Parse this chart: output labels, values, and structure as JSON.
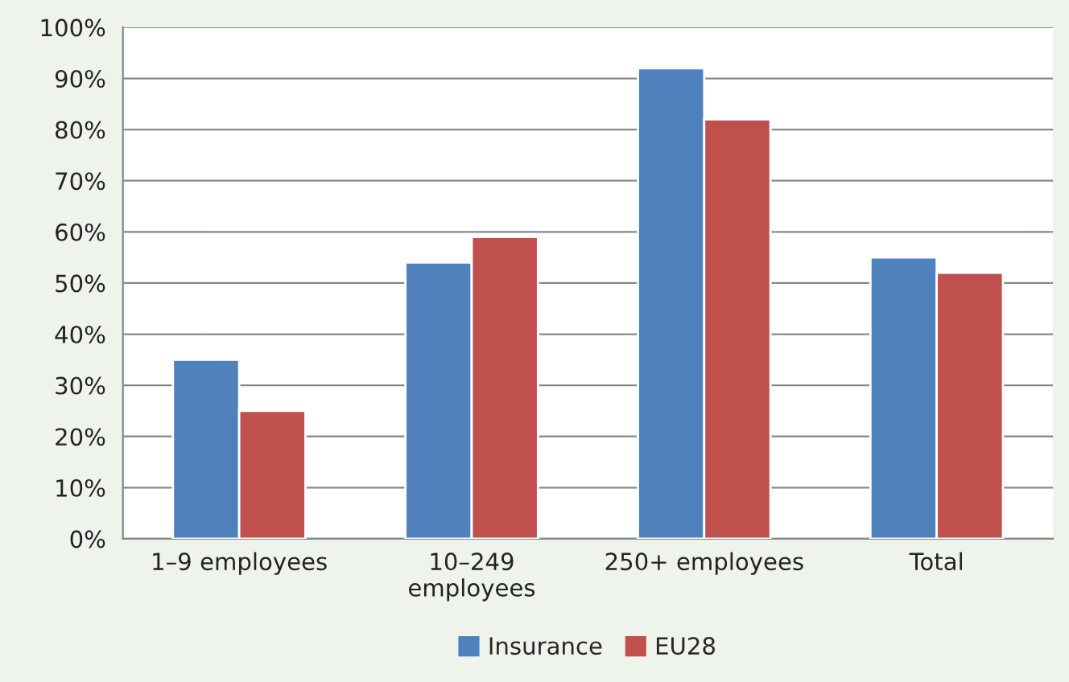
{
  "chart_data": {
    "type": "bar",
    "categories": [
      "1–9 employees",
      "10–249\nemployees",
      "250+ employees",
      "Total"
    ],
    "series": [
      {
        "name": "Insurance",
        "color": "#4f81bd",
        "values": [
          35,
          54,
          92,
          55
        ]
      },
      {
        "name": "EU28",
        "color": "#c0504d",
        "values": [
          25,
          59,
          82,
          52
        ]
      }
    ],
    "ylim": [
      0,
      100
    ],
    "yticks": [
      {
        "value": 0,
        "label": "0%"
      },
      {
        "value": 10,
        "label": "10%"
      },
      {
        "value": 20,
        "label": "20%"
      },
      {
        "value": 30,
        "label": "30%"
      },
      {
        "value": 40,
        "label": "40%"
      },
      {
        "value": 50,
        "label": "50%"
      },
      {
        "value": 60,
        "label": "60%"
      },
      {
        "value": 70,
        "label": "70%"
      },
      {
        "value": 80,
        "label": "80%"
      },
      {
        "value": 90,
        "label": "90%"
      },
      {
        "value": 100,
        "label": "100%"
      }
    ],
    "grid": "y",
    "legend": "bottom"
  }
}
